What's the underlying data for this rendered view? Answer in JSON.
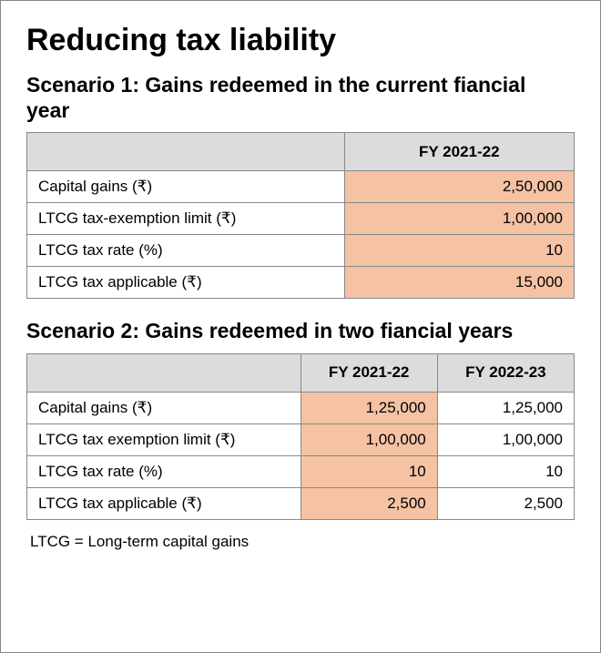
{
  "title": "Reducing tax liability",
  "footnote": "LTCG = Long-term capital gains",
  "colors": {
    "highlight_bg": "#f5c2a4",
    "header_bg": "#dcdcdc",
    "border": "#888888",
    "text": "#000000",
    "page_bg": "#ffffff"
  },
  "scenario1": {
    "heading": "Scenario 1: Gains redeemed in the current fiancial year",
    "columns": [
      "",
      "FY 2021-22"
    ],
    "rows": [
      {
        "label": "Capital gains (₹)",
        "fy1": "2,50,000"
      },
      {
        "label": "LTCG tax-exemption limit (₹)",
        "fy1": "1,00,000"
      },
      {
        "label": "LTCG tax rate (%)",
        "fy1": "10"
      },
      {
        "label": "LTCG tax applicable (₹)",
        "fy1": "15,000"
      }
    ]
  },
  "scenario2": {
    "heading": "Scenario 2: Gains redeemed in two fiancial years",
    "columns": [
      "",
      "FY 2021-22",
      "FY 2022-23"
    ],
    "rows": [
      {
        "label": "Capital gains (₹)",
        "fy1": "1,25,000",
        "fy2": "1,25,000"
      },
      {
        "label": "LTCG tax exemption limit (₹)",
        "fy1": "1,00,000",
        "fy2": "1,00,000"
      },
      {
        "label": "LTCG tax rate (%)",
        "fy1": "10",
        "fy2": "10"
      },
      {
        "label": "LTCG tax applicable (₹)",
        "fy1": "2,500",
        "fy2": "2,500"
      }
    ]
  }
}
